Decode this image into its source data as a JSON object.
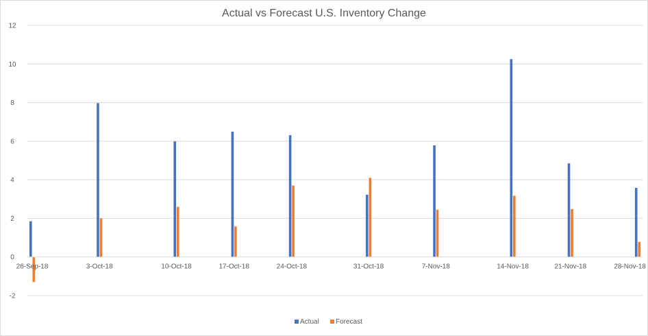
{
  "chart_data": {
    "type": "bar",
    "title": "Actual vs Forecast U.S. Inventory Change",
    "xlabel": "",
    "ylabel": "",
    "x_dates": [
      "2018-09-26",
      "2018-09-27",
      "2018-09-28",
      "2018-09-29",
      "2018-09-30",
      "2018-10-01",
      "2018-10-02",
      "2018-10-03",
      "2018-10-04",
      "2018-10-05",
      "2018-10-06",
      "2018-10-07",
      "2018-10-08",
      "2018-10-09",
      "2018-10-10",
      "2018-10-11",
      "2018-10-12",
      "2018-10-13",
      "2018-10-14",
      "2018-10-15",
      "2018-10-16",
      "2018-10-17",
      "2018-10-18",
      "2018-10-19",
      "2018-10-20",
      "2018-10-21",
      "2018-10-22",
      "2018-10-23",
      "2018-10-24",
      "2018-10-25",
      "2018-10-26",
      "2018-10-27",
      "2018-10-28",
      "2018-10-29",
      "2018-10-30",
      "2018-10-31",
      "2018-11-01",
      "2018-11-02",
      "2018-11-03",
      "2018-11-04",
      "2018-11-05",
      "2018-11-06",
      "2018-11-07",
      "2018-11-08",
      "2018-11-09",
      "2018-11-10",
      "2018-11-11",
      "2018-11-12",
      "2018-11-13",
      "2018-11-14",
      "2018-11-15",
      "2018-11-16",
      "2018-11-17",
      "2018-11-18",
      "2018-11-19",
      "2018-11-20",
      "2018-11-21",
      "2018-11-22",
      "2018-11-23",
      "2018-11-24",
      "2018-11-25",
      "2018-11-26",
      "2018-11-27",
      "2018-11-28"
    ],
    "tick_labels": [
      "26-Sep-18",
      "3-Oct-18",
      "10-Oct-18",
      "17-Oct-18",
      "24-Oct-18",
      "31-Oct-18",
      "7-Nov-18",
      "14-Nov-18",
      "21-Nov-18",
      "28-Nov-18"
    ],
    "ylim": [
      -2,
      12
    ],
    "yticks": [
      -2,
      0,
      2,
      4,
      6,
      8,
      10,
      12
    ],
    "grid": true,
    "legend_position": "bottom",
    "series": [
      {
        "name": "Actual",
        "color": "#4472C4",
        "points": [
          {
            "x": "2018-09-26",
            "y": 1.85
          },
          {
            "x": "2018-10-03",
            "y": 7.97
          },
          {
            "x": "2018-10-11",
            "y": 5.99
          },
          {
            "x": "2018-10-17",
            "y": 6.49
          },
          {
            "x": "2018-10-23",
            "y": 6.31
          },
          {
            "x": "2018-10-31",
            "y": 3.22
          },
          {
            "x": "2018-11-07",
            "y": 5.78
          },
          {
            "x": "2018-11-15",
            "y": 10.25
          },
          {
            "x": "2018-11-21",
            "y": 4.85
          },
          {
            "x": "2018-11-28",
            "y": 3.58
          }
        ]
      },
      {
        "name": "Forecast",
        "color": "#ED7D31",
        "points": [
          {
            "x": "2018-09-26",
            "y": -1.3
          },
          {
            "x": "2018-10-03",
            "y": 2.0
          },
          {
            "x": "2018-10-11",
            "y": 2.6
          },
          {
            "x": "2018-10-17",
            "y": 1.58
          },
          {
            "x": "2018-10-23",
            "y": 3.7
          },
          {
            "x": "2018-10-31",
            "y": 4.1
          },
          {
            "x": "2018-11-07",
            "y": 2.45
          },
          {
            "x": "2018-11-15",
            "y": 3.17
          },
          {
            "x": "2018-11-21",
            "y": 2.48
          },
          {
            "x": "2018-11-28",
            "y": 0.78
          }
        ]
      }
    ]
  }
}
